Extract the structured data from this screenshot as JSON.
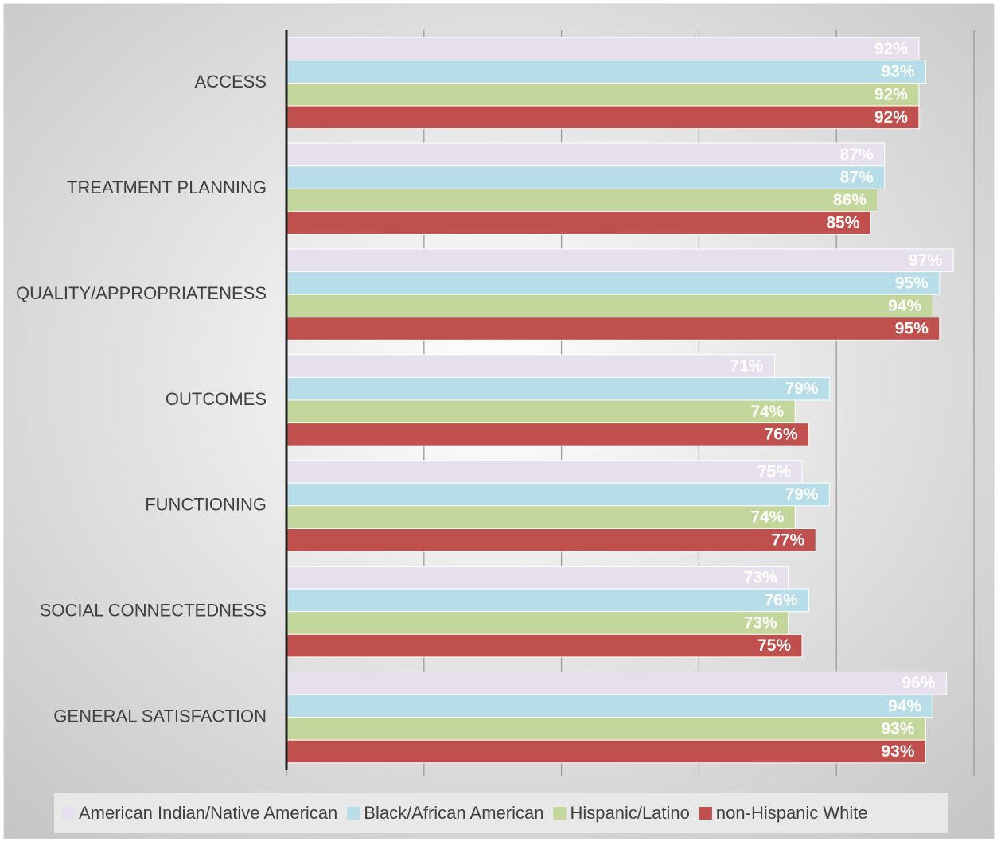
{
  "chart_data": {
    "type": "bar",
    "orientation": "horizontal",
    "categories": [
      "ACCESS",
      "TREATMENT PLANNING",
      "QUALITY/APPROPRIATENESS",
      "OUTCOMES",
      "FUNCTIONING",
      "SOCIAL CONNECTEDNESS",
      "GENERAL SATISFACTION"
    ],
    "series": [
      {
        "name": "American Indian/Native American",
        "color": "#e6e0ec",
        "values": [
          92,
          87,
          97,
          71,
          75,
          73,
          96
        ],
        "value_labels": [
          "92%",
          "87%",
          "97%",
          "71%",
          "75%",
          "73%",
          "96%"
        ]
      },
      {
        "name": "Black/African American",
        "color": "#b7dde8",
        "values": [
          93,
          87,
          95,
          79,
          79,
          76,
          94
        ],
        "value_labels": [
          "93%",
          "87%",
          "95%",
          "79%",
          "79%",
          "76%",
          "94%"
        ]
      },
      {
        "name": "Hispanic/Latino",
        "color": "#c3d69b",
        "values": [
          92,
          86,
          94,
          74,
          74,
          73,
          93
        ],
        "value_labels": [
          "92%",
          "86%",
          "94%",
          "74%",
          "74%",
          "73%",
          "93%"
        ]
      },
      {
        "name": "non-Hispanic White",
        "color": "#c0504d",
        "values": [
          92,
          85,
          95,
          76,
          77,
          75,
          93
        ],
        "value_labels": [
          "92%",
          "85%",
          "95%",
          "76%",
          "77%",
          "75%",
          "93%"
        ]
      }
    ],
    "xlim": [
      0,
      100
    ],
    "xticks": [
      0,
      20,
      40,
      60,
      80,
      100
    ],
    "grid": true,
    "legend": "bottom"
  }
}
